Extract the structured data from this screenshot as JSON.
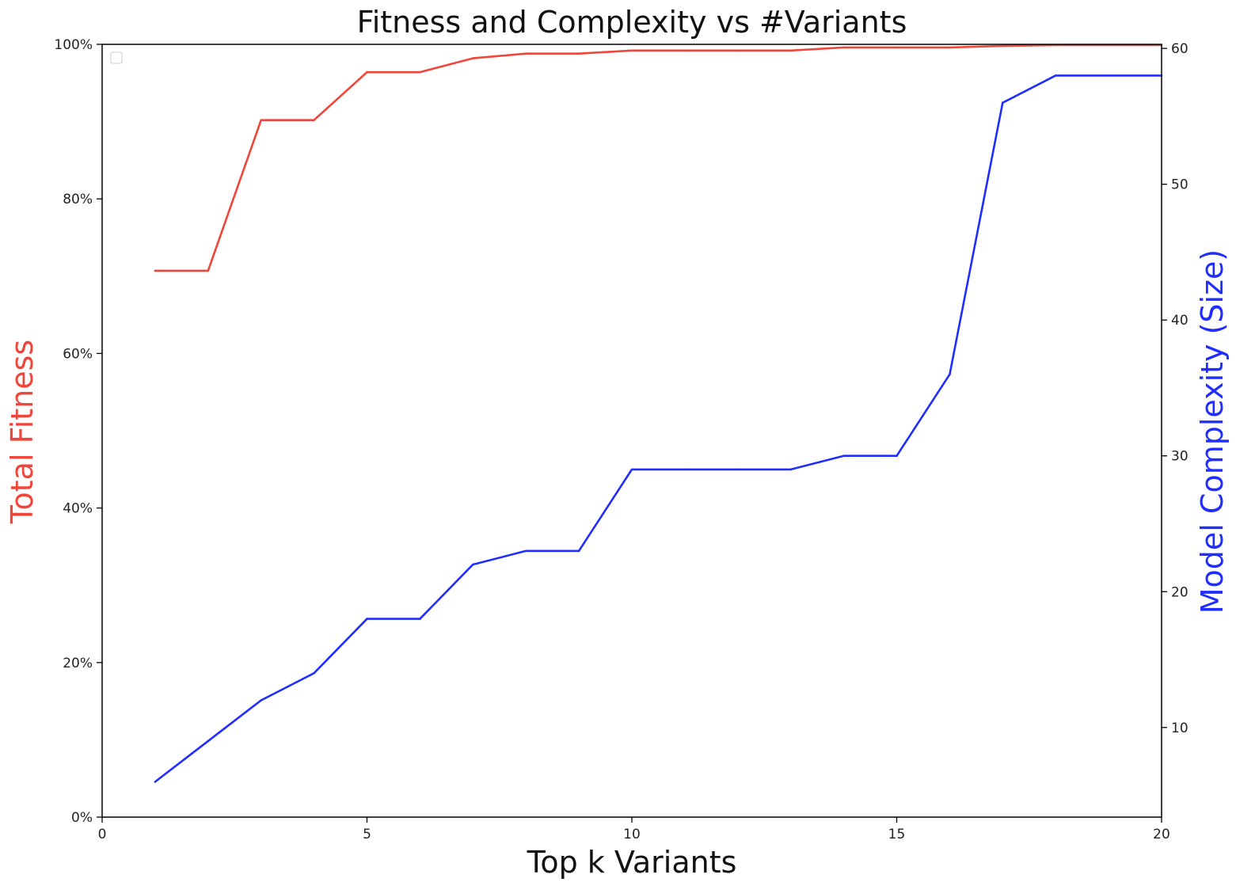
{
  "chart_data": {
    "type": "line",
    "title": "Fitness and Complexity vs #Variants",
    "xlabel": "Top k Variants",
    "ylabel_left": "Total Fitness",
    "ylabel_right": "Model Complexity (Size)",
    "xlim": [
      0,
      20
    ],
    "ylim_left": [
      0,
      1.0
    ],
    "ylim_right": [
      3.4,
      60.3
    ],
    "x_ticks": [
      0,
      5,
      10,
      15,
      20
    ],
    "y_left_ticks": [
      0,
      0.2,
      0.4,
      0.6,
      0.8,
      1.0
    ],
    "y_left_tick_labels": [
      "0%",
      "20%",
      "40%",
      "60%",
      "80%",
      "100%"
    ],
    "y_right_ticks": [
      10,
      20,
      30,
      40,
      50,
      60
    ],
    "grid": false,
    "legend": "top-left (empty)",
    "x": [
      1,
      2,
      3,
      4,
      5,
      6,
      7,
      8,
      9,
      10,
      11,
      12,
      13,
      14,
      15,
      16,
      17,
      18,
      19,
      20
    ],
    "series": [
      {
        "axis": "left",
        "color": "#f0453a",
        "values": [
          0.707,
          0.707,
          0.902,
          0.902,
          0.964,
          0.964,
          0.982,
          0.988,
          0.988,
          0.992,
          0.992,
          0.992,
          0.992,
          0.996,
          0.996,
          0.996,
          0.998,
          0.999,
          0.999,
          0.999
        ]
      },
      {
        "axis": "right",
        "color": "#1f2dff",
        "values": [
          6,
          9,
          12,
          14,
          18,
          18,
          22,
          23,
          23,
          29,
          29,
          29,
          29,
          30,
          30,
          36,
          56,
          58,
          58,
          58
        ]
      }
    ]
  }
}
